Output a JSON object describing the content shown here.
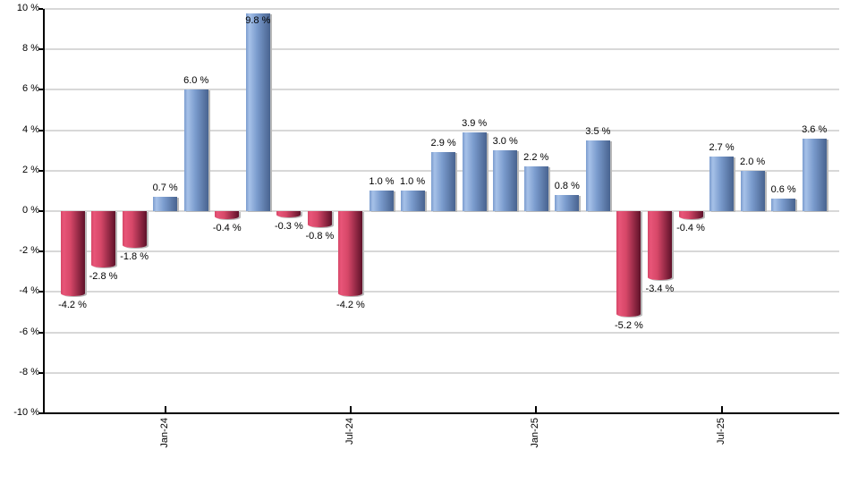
{
  "chart_data": {
    "type": "bar",
    "title": "",
    "xlabel": "",
    "ylabel": "",
    "ylim": [
      -10,
      10
    ],
    "grid": true,
    "legend": "none",
    "values": [
      -4.2,
      -2.8,
      -1.8,
      0.7,
      6.0,
      -0.4,
      9.8,
      -0.3,
      -0.8,
      -4.2,
      1.0,
      1.0,
      2.9,
      3.9,
      3.0,
      2.2,
      0.8,
      3.5,
      -5.2,
      -3.4,
      -0.4,
      2.7,
      2.0,
      0.6,
      3.6
    ],
    "bar_labels": [
      "-4.2 %",
      "-2.8 %",
      "-1.8 %",
      "0.7 %",
      "6.0 %",
      "-0.4 %",
      "9.8 %",
      "-0.3 %",
      "-0.8 %",
      "-4.2 %",
      "1.0 %",
      "1.0 %",
      "2.9 %",
      "3.9 %",
      "3.0 %",
      "2.2 %",
      "0.8 %",
      "3.5 %",
      "-5.2 %",
      "-3.4 %",
      "-0.4 %",
      "2.7 %",
      "2.0 %",
      "0.6 %",
      "3.6 %"
    ],
    "x_ticks": [
      {
        "label": "Jan-24",
        "bar_index": 3
      },
      {
        "label": "Jul-24",
        "bar_index": 9
      },
      {
        "label": "Jan-25",
        "bar_index": 15
      },
      {
        "label": "Jul-25",
        "bar_index": 21
      }
    ],
    "y_ticks": [
      {
        "label": "10 %",
        "value": 10
      },
      {
        "label": "8 %",
        "value": 8
      },
      {
        "label": "6 %",
        "value": 6
      },
      {
        "label": "4 %",
        "value": 4
      },
      {
        "label": "2 %",
        "value": 2
      },
      {
        "label": "0 %",
        "value": 0
      },
      {
        "label": "-2 %",
        "value": -2
      },
      {
        "label": "-4 %",
        "value": -4
      },
      {
        "label": "-6 %",
        "value": -6
      },
      {
        "label": "-8 %",
        "value": -8
      },
      {
        "label": "-10 %",
        "value": -10
      }
    ],
    "colors": {
      "positive_bar": "#7b9cce",
      "positive_bar_highlight": "#a6c1e8",
      "positive_bar_dark": "#48638f",
      "negative_bar": "#d64768",
      "negative_bar_highlight": "#e85578",
      "negative_bar_dark": "#5e1129",
      "gridline": "#d8d8d8",
      "axis": "#000000",
      "label_text": "#000000",
      "background": "#ffffff"
    }
  }
}
